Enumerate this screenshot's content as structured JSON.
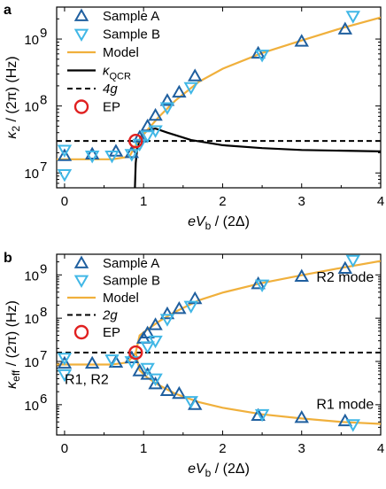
{
  "colors": {
    "sample_a": "#1f5f9f",
    "sample_b": "#40b7e6",
    "model": "#f0b03c",
    "qcr": "#000000",
    "ep": "#e02020"
  },
  "chart_data": [
    {
      "panel": "a",
      "type": "scatter",
      "yscale": "log",
      "xlim": [
        -0.1,
        4
      ],
      "ylim": [
        6000000,
        3000000000
      ],
      "xticks": [
        0,
        1,
        2,
        3,
        4
      ],
      "yticks": [
        10000000,
        100000000,
        1000000000
      ],
      "xtick_labels": [
        "0",
        "1",
        "2",
        "3",
        "4"
      ],
      "ytick_labels": [
        "10",
        "10",
        "10"
      ],
      "ytick_exps": [
        "7",
        "8",
        "9"
      ],
      "xlabel": {
        "main": "eV",
        "sub": "b",
        "rest": " / (2Δ)"
      },
      "ylabel": {
        "main": "κ",
        "sub": "2",
        "rest": " / (2π)  (Hz)"
      },
      "legend": [
        {
          "label": "Sample A",
          "kind": "sample_a"
        },
        {
          "label": "Sample B",
          "kind": "sample_b"
        },
        {
          "label": "Model",
          "kind": "model"
        },
        {
          "label": "κ",
          "sub": "QCR",
          "kind": "qcr"
        },
        {
          "label": "4g",
          "kind": "dashed"
        },
        {
          "label": "EP",
          "kind": "ep"
        }
      ],
      "sample_a": [
        [
          0,
          18000000
        ],
        [
          0.35,
          19000000
        ],
        [
          0.65,
          21000000
        ],
        [
          0.85,
          20000000
        ],
        [
          0.95,
          34000000
        ],
        [
          1.05,
          50000000
        ],
        [
          1.15,
          72000000
        ],
        [
          1.3,
          120000000
        ],
        [
          1.45,
          160000000
        ],
        [
          1.65,
          280000000
        ],
        [
          2.45,
          610000000
        ],
        [
          3.0,
          920000000
        ],
        [
          3.55,
          1400000000
        ]
      ],
      "sample_b": [
        [
          0,
          22000000
        ],
        [
          0.0,
          9500000
        ],
        [
          0.35,
          18000000
        ],
        [
          0.6,
          18000000
        ],
        [
          0.85,
          19000000
        ],
        [
          0.95,
          27000000
        ],
        [
          1.05,
          36000000
        ],
        [
          1.15,
          43000000
        ],
        [
          1.3,
          95000000
        ],
        [
          1.6,
          190000000
        ],
        [
          2.5,
          580000000
        ],
        [
          3.65,
          2200000000
        ]
      ],
      "model": [
        [
          -0.1,
          16000000
        ],
        [
          0.6,
          16000000
        ],
        [
          0.82,
          17500000
        ],
        [
          0.9,
          26000000
        ],
        [
          1.0,
          38000000
        ],
        [
          1.2,
          70000000
        ],
        [
          1.4,
          120000000
        ],
        [
          1.7,
          230000000
        ],
        [
          2.0,
          360000000
        ],
        [
          2.5,
          620000000
        ],
        [
          3.0,
          950000000
        ],
        [
          3.5,
          1450000000
        ],
        [
          4.0,
          2100000000
        ]
      ],
      "qcr": [
        [
          0.89,
          6000000
        ],
        [
          0.9,
          14000000
        ],
        [
          0.92,
          24000000
        ],
        [
          0.96,
          34000000
        ],
        [
          1.05,
          44000000
        ],
        [
          1.15,
          46000000
        ],
        [
          1.3,
          40000000
        ],
        [
          1.6,
          31000000
        ],
        [
          2.0,
          26000000
        ],
        [
          2.5,
          23500000
        ],
        [
          3.0,
          22000000
        ],
        [
          4.0,
          21000000
        ]
      ],
      "dashed_y": 30000000,
      "ep": [
        0.9,
        30000000
      ]
    },
    {
      "panel": "b",
      "type": "scatter",
      "yscale": "log",
      "xlim": [
        -0.1,
        4
      ],
      "ylim": [
        200000,
        3000000000
      ],
      "xticks": [
        0,
        1,
        2,
        3,
        4
      ],
      "yticks": [
        1000000,
        10000000,
        100000000,
        1000000000
      ],
      "xtick_labels": [
        "0",
        "1",
        "2",
        "3",
        "4"
      ],
      "ytick_labels": [
        "10",
        "10",
        "10",
        "10"
      ],
      "ytick_exps": [
        "6",
        "7",
        "8",
        "9"
      ],
      "xlabel": {
        "main": "eV",
        "sub": "b",
        "rest": " / (2Δ)"
      },
      "ylabel": {
        "main": "κ",
        "sub": "eff",
        "rest": " / (2π)  (Hz)"
      },
      "legend": [
        {
          "label": "Sample A",
          "kind": "sample_a"
        },
        {
          "label": "Sample B",
          "kind": "sample_b"
        },
        {
          "label": "Model",
          "kind": "model"
        },
        {
          "label": "2g",
          "kind": "dashed"
        },
        {
          "label": "EP",
          "kind": "ep"
        }
      ],
      "annotations": [
        {
          "text": "R2 mode",
          "x": 3.55,
          "y": 700000000
        },
        {
          "text": "R1 mode",
          "x": 3.55,
          "y": 800000
        },
        {
          "text": "R1, R2",
          "x": 0.28,
          "y": 3000000
        }
      ],
      "sample_a": [
        [
          0,
          9000000
        ],
        [
          0.35,
          9000000
        ],
        [
          0.65,
          9500000
        ],
        [
          0.85,
          12000000
        ],
        [
          1.0,
          34000000
        ],
        [
          1.05,
          45000000
        ],
        [
          1.15,
          70000000
        ],
        [
          1.3,
          125000000
        ],
        [
          1.45,
          165000000
        ],
        [
          1.65,
          280000000
        ],
        [
          2.45,
          620000000
        ],
        [
          3.0,
          920000000
        ],
        [
          3.55,
          1400000000
        ],
        [
          0.95,
          6000000
        ],
        [
          1.05,
          5000000
        ],
        [
          1.15,
          3000000
        ],
        [
          1.3,
          2100000
        ],
        [
          1.45,
          1800000
        ],
        [
          1.65,
          1000000
        ],
        [
          2.45,
          560000
        ],
        [
          3.0,
          500000
        ],
        [
          3.55,
          420000
        ]
      ],
      "sample_b": [
        [
          0,
          12000000
        ],
        [
          0,
          5000000
        ],
        [
          0.6,
          11000000
        ],
        [
          0.85,
          10000000
        ],
        [
          1.05,
          22000000
        ],
        [
          1.15,
          30000000
        ],
        [
          1.3,
          95000000
        ],
        [
          1.6,
          190000000
        ],
        [
          2.5,
          590000000
        ],
        [
          3.65,
          2200000000
        ],
        [
          1.05,
          7000000
        ],
        [
          1.15,
          4000000
        ],
        [
          1.6,
          1200000
        ],
        [
          2.5,
          600000
        ],
        [
          3.65,
          350000
        ]
      ],
      "model_upper": [
        [
          0.9,
          16000000
        ],
        [
          0.95,
          40000000
        ],
        [
          1.05,
          55000000
        ],
        [
          1.2,
          85000000
        ],
        [
          1.4,
          140000000
        ],
        [
          1.7,
          260000000
        ],
        [
          2.0,
          390000000
        ],
        [
          2.5,
          650000000
        ],
        [
          3.0,
          980000000
        ],
        [
          3.5,
          1450000000
        ],
        [
          4.0,
          2100000000
        ]
      ],
      "model_lower": [
        [
          -0.1,
          8500000
        ],
        [
          0.6,
          8500000
        ],
        [
          0.8,
          9500000
        ],
        [
          0.9,
          16000000
        ],
        [
          0.95,
          6200000
        ],
        [
          1.05,
          4200000
        ],
        [
          1.2,
          2800000
        ],
        [
          1.4,
          1800000
        ],
        [
          1.7,
          1150000
        ],
        [
          2.0,
          850000
        ],
        [
          2.5,
          600000
        ],
        [
          3.0,
          480000
        ],
        [
          3.5,
          400000
        ],
        [
          4.0,
          360000
        ]
      ],
      "dashed_y": 16000000,
      "ep": [
        0.9,
        16000000
      ]
    }
  ]
}
